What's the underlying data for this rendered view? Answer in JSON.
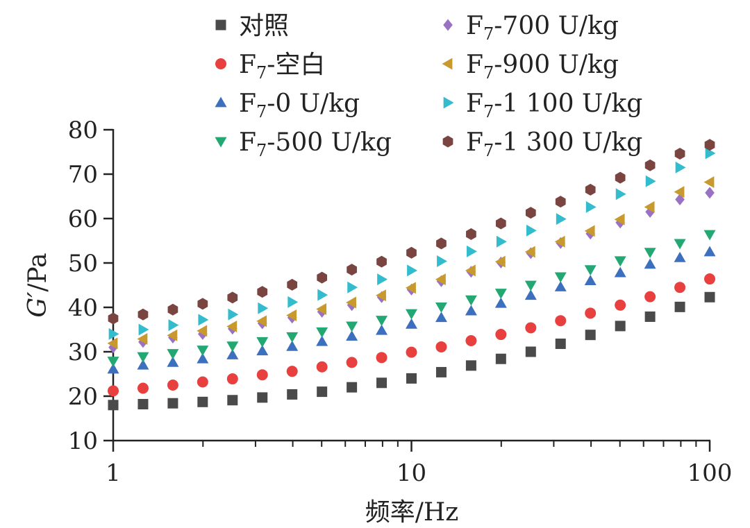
{
  "chart_data": {
    "type": "scatter",
    "x_scale": "log",
    "xlabel": "频率/Hz",
    "ylabel": "G'/Pa",
    "ylabel_italic": "G′",
    "ylabel_unit": "/Pa",
    "xlim": [
      1,
      100
    ],
    "ylim": [
      10,
      80
    ],
    "x_ticks": [
      1,
      10,
      100
    ],
    "x_tick_labels": [
      "1",
      "10",
      "100"
    ],
    "y_ticks": [
      10,
      20,
      30,
      40,
      50,
      60,
      70,
      80
    ],
    "y_tick_labels": [
      "10",
      "20",
      "30",
      "40",
      "50",
      "60",
      "70",
      "80"
    ],
    "x": [
      1,
      1.259,
      1.585,
      1.995,
      2.512,
      3.162,
      3.981,
      5.012,
      6.31,
      7.943,
      10,
      12.59,
      15.85,
      19.95,
      25.12,
      31.62,
      39.81,
      50.12,
      63.1,
      79.43,
      100
    ],
    "legend_position": "top",
    "series": [
      {
        "name": "对照",
        "name_main": "对照",
        "name_sub": "",
        "name_rest": "",
        "marker": "square",
        "color": "#4a4a4a",
        "values": [
          18.0,
          18.2,
          18.4,
          18.7,
          19.1,
          19.7,
          20.4,
          21.0,
          22.0,
          23.0,
          24.0,
          25.4,
          26.9,
          28.4,
          30.0,
          31.8,
          33.8,
          35.8,
          37.9,
          40.1,
          42.3
        ]
      },
      {
        "name": "F7-空白",
        "name_main": "F",
        "name_sub": "7",
        "name_rest": "-空白",
        "marker": "circle",
        "color": "#e8403f",
        "values": [
          21.2,
          21.8,
          22.5,
          23.2,
          23.9,
          24.8,
          25.6,
          26.6,
          27.6,
          28.7,
          29.9,
          31.1,
          32.5,
          33.9,
          35.4,
          37.0,
          38.7,
          40.5,
          42.4,
          44.5,
          46.4
        ]
      },
      {
        "name": "F7-0 U/kg",
        "name_main": "F",
        "name_sub": "7",
        "name_rest": "-0 U/kg",
        "marker": "triangle-up",
        "color": "#3d6fbf",
        "values": [
          26.1,
          27.0,
          27.6,
          28.4,
          29.3,
          30.2,
          31.2,
          32.3,
          33.5,
          34.8,
          36.2,
          37.7,
          39.2,
          40.9,
          42.7,
          44.6,
          46.0,
          47.8,
          49.7,
          51.2,
          52.5
        ]
      },
      {
        "name": "F7-500 U/kg",
        "name_main": "F",
        "name_sub": "7",
        "name_rest": "-500 U/kg",
        "marker": "triangle-down",
        "color": "#23a873",
        "values": [
          27.9,
          28.9,
          29.6,
          30.4,
          31.3,
          32.3,
          33.4,
          34.5,
          35.8,
          37.1,
          38.6,
          40.1,
          41.7,
          43.2,
          45.0,
          46.9,
          48.5,
          50.5,
          52.4,
          54.4,
          56.4
        ]
      },
      {
        "name": "F7-700 U/kg",
        "name_main": "F",
        "name_sub": "7",
        "name_rest": "-700 U/kg",
        "marker": "diamond",
        "color": "#9a72c4",
        "values": [
          31.0,
          32.2,
          33.2,
          34.0,
          35.2,
          36.4,
          37.7,
          39.0,
          40.5,
          42.3,
          44.0,
          45.9,
          48.0,
          50.1,
          52.2,
          54.5,
          56.6,
          59.1,
          61.5,
          64.3,
          65.8
        ]
      },
      {
        "name": "F7-900 U/kg",
        "name_main": "F",
        "name_sub": "7",
        "name_rest": "-900 U/kg",
        "marker": "triangle-left",
        "color": "#c8992d",
        "values": [
          31.9,
          32.9,
          33.7,
          34.7,
          35.7,
          36.9,
          38.2,
          39.6,
          41.1,
          42.7,
          44.4,
          46.3,
          48.3,
          50.3,
          52.5,
          54.8,
          57.2,
          59.8,
          62.6,
          66.0,
          68.2
        ]
      },
      {
        "name": "F7-1 100 U/kg",
        "name_main": "F",
        "name_sub": "7",
        "name_rest": "-1 100 U/kg",
        "marker": "triangle-right",
        "color": "#33bccd",
        "values": [
          34.0,
          35.0,
          36.0,
          37.2,
          38.4,
          39.8,
          41.2,
          42.8,
          44.5,
          46.3,
          48.3,
          50.4,
          52.6,
          54.8,
          57.3,
          59.9,
          62.6,
          65.5,
          68.4,
          71.5,
          74.7
        ]
      },
      {
        "name": "F7-1 300 U/kg",
        "name_main": "F",
        "name_sub": "7",
        "name_rest": "-1 300 U/kg",
        "marker": "hexagon",
        "color": "#7a4540",
        "values": [
          37.5,
          38.4,
          39.5,
          40.8,
          42.2,
          43.5,
          45.1,
          46.7,
          48.5,
          50.3,
          52.3,
          54.4,
          56.5,
          58.9,
          61.3,
          63.8,
          66.5,
          69.2,
          72.0,
          74.6,
          76.6
        ]
      }
    ]
  }
}
